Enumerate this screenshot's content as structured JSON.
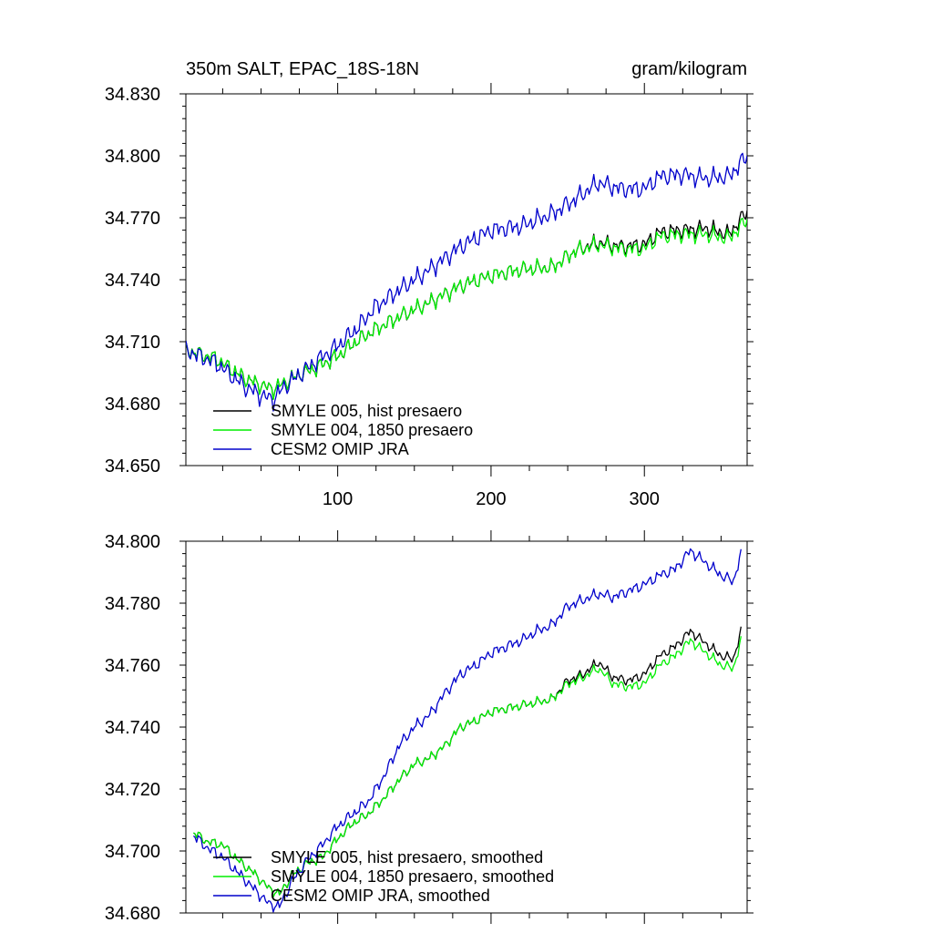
{
  "figure": {
    "title_left": "350m SALT, EPAC_18S-18N",
    "title_right": "gram/kilogram"
  },
  "colors": {
    "smyle005": "#000000",
    "smyle004": "#00ee00",
    "omip": "#0000cc"
  },
  "chart_data": [
    {
      "type": "line",
      "title": "350m SALT, EPAC_18S-18N",
      "units": "gram/kilogram",
      "xlim": [
        1,
        367
      ],
      "ylim": [
        34.65,
        34.83
      ],
      "xticks": [
        100,
        200,
        300
      ],
      "xticklabels": [
        "100",
        "200",
        "300"
      ],
      "yticks": [
        34.65,
        34.68,
        34.71,
        34.74,
        34.77,
        34.8,
        34.83
      ],
      "yticklabels": [
        "34.650",
        "34.680",
        "34.710",
        "34.740",
        "34.770",
        "34.800",
        "34.830"
      ],
      "noise": 0.0045,
      "legend": [
        "SMYLE 005, hist presaero",
        "SMYLE 004, 1850 presaero",
        "CESM2 OMIP JRA"
      ],
      "series": [
        {
          "name": "SMYLE 005, hist presaero",
          "color": "#000000",
          "points": [
            [
              1,
              34.706
            ],
            [
              10,
              34.704
            ],
            [
              20,
              34.702
            ],
            [
              30,
              34.697
            ],
            [
              40,
              34.692
            ],
            [
              50,
              34.689
            ],
            [
              58,
              34.687
            ],
            [
              65,
              34.69
            ],
            [
              75,
              34.694
            ],
            [
              85,
              34.697
            ],
            [
              100,
              34.703
            ],
            [
              112,
              34.71
            ],
            [
              125,
              34.716
            ],
            [
              140,
              34.722
            ],
            [
              160,
              34.729
            ],
            [
              180,
              34.737
            ],
            [
              200,
              34.742
            ],
            [
              220,
              34.745
            ],
            [
              240,
              34.746
            ],
            [
              255,
              34.754
            ],
            [
              270,
              34.758
            ],
            [
              285,
              34.756
            ],
            [
              300,
              34.757
            ],
            [
              310,
              34.763
            ],
            [
              325,
              34.764
            ],
            [
              340,
              34.765
            ],
            [
              355,
              34.762
            ],
            [
              367,
              34.773
            ]
          ]
        },
        {
          "name": "SMYLE 004, 1850 presaero",
          "color": "#00ee00",
          "points": [
            [
              1,
              34.706
            ],
            [
              10,
              34.704
            ],
            [
              20,
              34.702
            ],
            [
              30,
              34.697
            ],
            [
              40,
              34.692
            ],
            [
              50,
              34.689
            ],
            [
              58,
              34.687
            ],
            [
              65,
              34.69
            ],
            [
              75,
              34.694
            ],
            [
              85,
              34.697
            ],
            [
              100,
              34.703
            ],
            [
              112,
              34.71
            ],
            [
              125,
              34.716
            ],
            [
              140,
              34.722
            ],
            [
              160,
              34.729
            ],
            [
              180,
              34.737
            ],
            [
              200,
              34.742
            ],
            [
              220,
              34.745
            ],
            [
              240,
              34.746
            ],
            [
              255,
              34.754
            ],
            [
              270,
              34.757
            ],
            [
              285,
              34.755
            ],
            [
              300,
              34.755
            ],
            [
              310,
              34.761
            ],
            [
              325,
              34.762
            ],
            [
              340,
              34.762
            ],
            [
              355,
              34.76
            ],
            [
              367,
              34.769
            ]
          ]
        },
        {
          "name": "CESM2 OMIP JRA",
          "color": "#0000cc",
          "points": [
            [
              1,
              34.706
            ],
            [
              10,
              34.703
            ],
            [
              20,
              34.7
            ],
            [
              30,
              34.694
            ],
            [
              40,
              34.688
            ],
            [
              50,
              34.684
            ],
            [
              58,
              34.682
            ],
            [
              65,
              34.688
            ],
            [
              75,
              34.694
            ],
            [
              85,
              34.7
            ],
            [
              100,
              34.708
            ],
            [
              112,
              34.716
            ],
            [
              125,
              34.727
            ],
            [
              140,
              34.735
            ],
            [
              160,
              34.745
            ],
            [
              180,
              34.756
            ],
            [
              200,
              34.764
            ],
            [
              220,
              34.766
            ],
            [
              240,
              34.772
            ],
            [
              255,
              34.779
            ],
            [
              270,
              34.787
            ],
            [
              285,
              34.784
            ],
            [
              300,
              34.784
            ],
            [
              310,
              34.79
            ],
            [
              325,
              34.791
            ],
            [
              340,
              34.789
            ],
            [
              355,
              34.79
            ],
            [
              367,
              34.8
            ]
          ]
        }
      ]
    },
    {
      "type": "line",
      "title": "",
      "xlim": [
        1,
        367
      ],
      "ylim": [
        34.68,
        34.8
      ],
      "xticks": [
        100,
        200,
        300
      ],
      "xticklabels": [
        "",
        "",
        ""
      ],
      "yticks": [
        34.68,
        34.7,
        34.72,
        34.74,
        34.76,
        34.78,
        34.8
      ],
      "yticklabels": [
        "34.680",
        "34.700",
        "34.720",
        "34.740",
        "34.760",
        "34.780",
        "34.800"
      ],
      "noise": 0.0018,
      "legend": [
        "SMYLE 005, hist presaero, smoothed",
        "SMYLE 004, 1850 presaero, smoothed",
        "CESM2 OMIP JRA, smoothed"
      ],
      "series": [
        {
          "name": "SMYLE 005, hist presaero, smoothed",
          "color": "#000000",
          "points": [
            [
              6,
              34.706
            ],
            [
              15,
              34.703
            ],
            [
              25,
              34.702
            ],
            [
              35,
              34.697
            ],
            [
              45,
              34.693
            ],
            [
              55,
              34.688
            ],
            [
              62,
              34.686
            ],
            [
              70,
              34.692
            ],
            [
              80,
              34.696
            ],
            [
              90,
              34.698
            ],
            [
              100,
              34.704
            ],
            [
              110,
              34.709
            ],
            [
              120,
              34.712
            ],
            [
              130,
              34.717
            ],
            [
              140,
              34.723
            ],
            [
              150,
              34.728
            ],
            [
              160,
              34.73
            ],
            [
              170,
              34.734
            ],
            [
              180,
              34.74
            ],
            [
              190,
              34.742
            ],
            [
              200,
              34.745
            ],
            [
              210,
              34.746
            ],
            [
              220,
              34.747
            ],
            [
              230,
              34.748
            ],
            [
              240,
              34.749
            ],
            [
              250,
              34.755
            ],
            [
              260,
              34.757
            ],
            [
              270,
              34.761
            ],
            [
              280,
              34.756
            ],
            [
              290,
              34.755
            ],
            [
              300,
              34.757
            ],
            [
              310,
              34.763
            ],
            [
              320,
              34.766
            ],
            [
              330,
              34.771
            ],
            [
              340,
              34.767
            ],
            [
              350,
              34.763
            ],
            [
              358,
              34.762
            ],
            [
              363,
              34.771
            ]
          ]
        },
        {
          "name": "SMYLE 004, 1850 presaero, smoothed",
          "color": "#00ee00",
          "points": [
            [
              6,
              34.706
            ],
            [
              15,
              34.703
            ],
            [
              25,
              34.702
            ],
            [
              35,
              34.697
            ],
            [
              45,
              34.693
            ],
            [
              55,
              34.688
            ],
            [
              62,
              34.686
            ],
            [
              70,
              34.692
            ],
            [
              80,
              34.696
            ],
            [
              90,
              34.698
            ],
            [
              100,
              34.704
            ],
            [
              110,
              34.709
            ],
            [
              120,
              34.712
            ],
            [
              130,
              34.717
            ],
            [
              140,
              34.723
            ],
            [
              150,
              34.728
            ],
            [
              160,
              34.73
            ],
            [
              170,
              34.734
            ],
            [
              180,
              34.74
            ],
            [
              190,
              34.742
            ],
            [
              200,
              34.745
            ],
            [
              210,
              34.746
            ],
            [
              220,
              34.747
            ],
            [
              230,
              34.748
            ],
            [
              240,
              34.749
            ],
            [
              250,
              34.754
            ],
            [
              260,
              34.756
            ],
            [
              270,
              34.759
            ],
            [
              280,
              34.754
            ],
            [
              290,
              34.753
            ],
            [
              300,
              34.754
            ],
            [
              310,
              34.76
            ],
            [
              320,
              34.763
            ],
            [
              330,
              34.768
            ],
            [
              340,
              34.764
            ],
            [
              350,
              34.76
            ],
            [
              358,
              34.759
            ],
            [
              363,
              34.768
            ]
          ]
        },
        {
          "name": "CESM2 OMIP JRA, smoothed",
          "color": "#0000cc",
          "points": [
            [
              6,
              34.705
            ],
            [
              15,
              34.701
            ],
            [
              25,
              34.698
            ],
            [
              35,
              34.693
            ],
            [
              45,
              34.688
            ],
            [
              55,
              34.683
            ],
            [
              62,
              34.682
            ],
            [
              70,
              34.69
            ],
            [
              80,
              34.697
            ],
            [
              90,
              34.702
            ],
            [
              100,
              34.708
            ],
            [
              110,
              34.712
            ],
            [
              120,
              34.716
            ],
            [
              130,
              34.724
            ],
            [
              140,
              34.734
            ],
            [
              150,
              34.74
            ],
            [
              160,
              34.744
            ],
            [
              170,
              34.751
            ],
            [
              180,
              34.757
            ],
            [
              190,
              34.76
            ],
            [
              200,
              34.764
            ],
            [
              210,
              34.766
            ],
            [
              220,
              34.768
            ],
            [
              230,
              34.771
            ],
            [
              240,
              34.773
            ],
            [
              250,
              34.779
            ],
            [
              260,
              34.781
            ],
            [
              270,
              34.783
            ],
            [
              280,
              34.782
            ],
            [
              290,
              34.784
            ],
            [
              300,
              34.786
            ],
            [
              310,
              34.789
            ],
            [
              320,
              34.791
            ],
            [
              330,
              34.797
            ],
            [
              340,
              34.793
            ],
            [
              350,
              34.789
            ],
            [
              358,
              34.787
            ],
            [
              363,
              34.796
            ]
          ]
        }
      ]
    }
  ]
}
